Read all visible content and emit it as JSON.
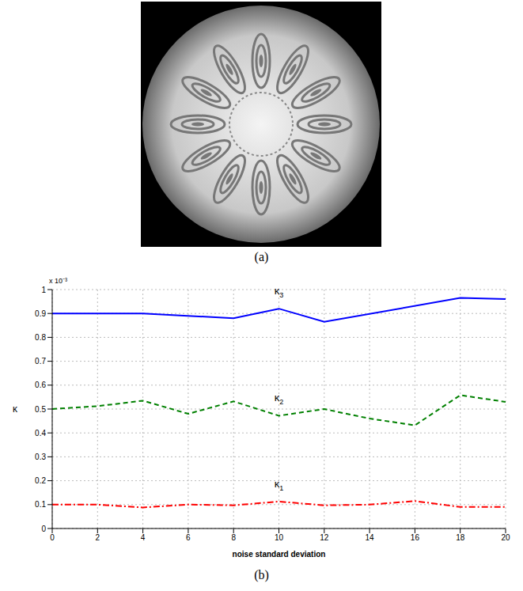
{
  "captions": [
    "(a)",
    "(b)"
  ],
  "chart_data": {
    "type": "line",
    "x_label": "noise standard deviation",
    "y_label": "κ",
    "annotations": [
      "x 10⁻³"
    ],
    "xlim": [
      0,
      20
    ],
    "xticks": [
      0,
      2,
      4,
      6,
      8,
      10,
      12,
      14,
      16,
      18,
      20
    ],
    "ylim": [
      0,
      1
    ],
    "yticks": [
      0,
      0.1,
      0.2,
      0.3,
      0.4,
      0.5,
      0.6,
      0.7,
      0.8,
      0.9,
      1
    ],
    "grid": true,
    "series": [
      {
        "name": "κ3",
        "color": "#0000ff",
        "line_style": "solid",
        "x": [
          0,
          2,
          4,
          8,
          10,
          12,
          18,
          20
        ],
        "values": [
          0.9,
          0.9,
          0.9,
          0.88,
          0.92,
          0.865,
          0.965,
          0.96
        ]
      },
      {
        "name": "κ2",
        "color": "#008000",
        "line_style": "dashed",
        "x": [
          0,
          2,
          4,
          6,
          8,
          10,
          12,
          14,
          16,
          18,
          20
        ],
        "values": [
          0.5,
          0.512,
          0.535,
          0.48,
          0.532,
          0.472,
          0.5,
          0.46,
          0.432,
          0.558,
          0.53
        ]
      },
      {
        "name": "κ1",
        "color": "#ff0000",
        "line_style": "dashdot",
        "x": [
          0,
          2,
          4,
          6,
          8,
          10,
          12,
          14,
          16,
          18,
          20
        ],
        "values": [
          0.1,
          0.1,
          0.088,
          0.1,
          0.097,
          0.113,
          0.097,
          0.1,
          0.115,
          0.09,
          0.09
        ]
      }
    ]
  }
}
